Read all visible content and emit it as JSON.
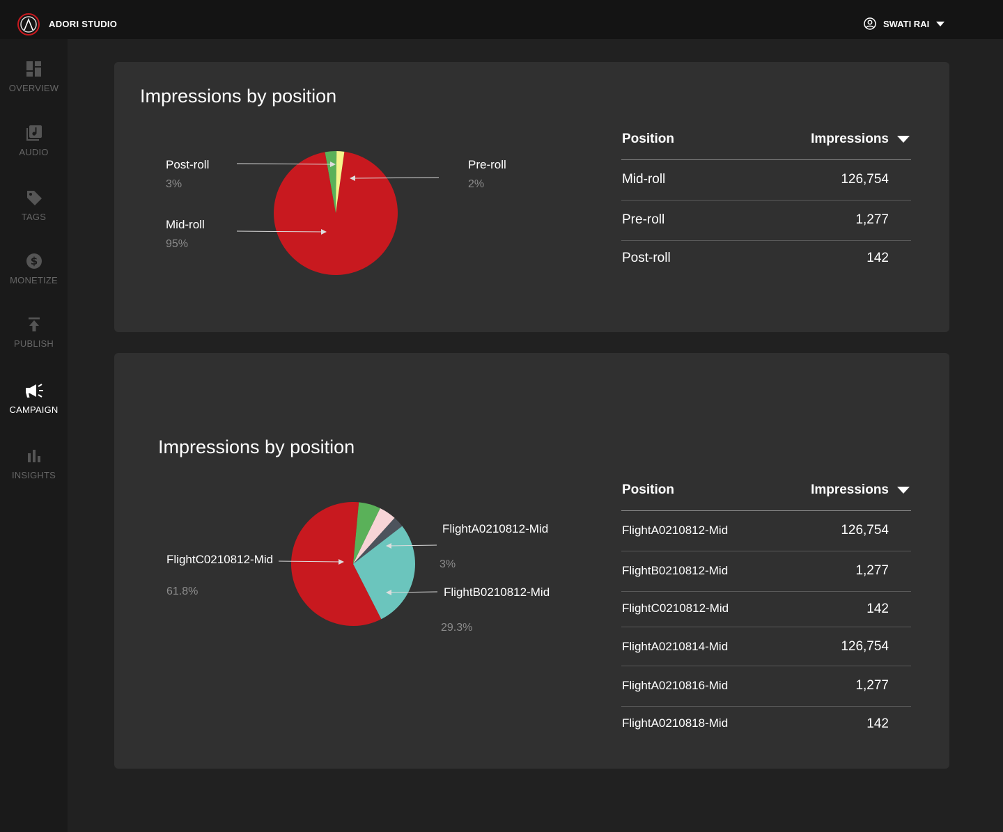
{
  "app": {
    "title": "ADORI STUDIO"
  },
  "user": {
    "name": "SWATI RAI"
  },
  "sidebar": {
    "items": [
      {
        "label": "OVERVIEW",
        "icon": "dashboard-icon"
      },
      {
        "label": "AUDIO",
        "icon": "audio-library-icon"
      },
      {
        "label": "TAGS",
        "icon": "tag-icon"
      },
      {
        "label": "MONETIZE",
        "icon": "dollar-icon"
      },
      {
        "label": "PUBLISH",
        "icon": "upload-icon"
      },
      {
        "label": "CAMPAIGN",
        "icon": "megaphone-icon",
        "active": true
      },
      {
        "label": "INSIGHTS",
        "icon": "bar-chart-icon"
      }
    ]
  },
  "colors": {
    "accent_red": "#c8191f",
    "green": "#5ab159",
    "yellow": "#f5f58c",
    "pink": "#f7d4d6",
    "slate": "#4d535c",
    "teal": "#6bc5bd"
  },
  "panel1": {
    "title": "Impressions by position",
    "labels": [
      {
        "name": "Post-roll",
        "pct": "3%"
      },
      {
        "name": "Mid-roll",
        "pct": "95%"
      },
      {
        "name": "Pre-roll",
        "pct": "2%"
      }
    ],
    "table": {
      "col_position": "Position",
      "col_impressions": "Impressions",
      "rows": [
        {
          "position": "Mid-roll",
          "impressions": "126,754"
        },
        {
          "position": "Pre-roll",
          "impressions": "1,277"
        },
        {
          "position": "Post-roll",
          "impressions": "142"
        }
      ]
    }
  },
  "panel2": {
    "title": "Impressions by position",
    "labels": [
      {
        "name": "FlightC0210812-Mid",
        "pct": "61.8%"
      },
      {
        "name": "FlightA0210812-Mid",
        "pct": "3%"
      },
      {
        "name": "FlightB0210812-Mid",
        "pct": "29.3%"
      }
    ],
    "table": {
      "col_position": "Position",
      "col_impressions": "Impressions",
      "rows": [
        {
          "position": "FlightA0210812-Mid",
          "impressions": "126,754"
        },
        {
          "position": "FlightB0210812-Mid",
          "impressions": "1,277"
        },
        {
          "position": "FlightC0210812-Mid",
          "impressions": "142"
        },
        {
          "position": "FlightA0210814-Mid",
          "impressions": "126,754"
        },
        {
          "position": "FlightA0210816-Mid",
          "impressions": "1,277"
        },
        {
          "position": "FlightA0210818-Mid",
          "impressions": "142"
        }
      ]
    }
  },
  "chart_data": [
    {
      "type": "pie",
      "title": "Impressions by position",
      "slices": [
        {
          "name": "Mid-roll",
          "value": 95,
          "color": "#c8191f"
        },
        {
          "name": "Post-roll",
          "value": 3,
          "color": "#5ab159"
        },
        {
          "name": "Pre-roll",
          "value": 2,
          "color": "#f5f58c"
        }
      ]
    },
    {
      "type": "pie",
      "title": "Impressions by position",
      "slices": [
        {
          "name": "FlightC0210812-Mid",
          "value": 61.8,
          "color": "#c8191f"
        },
        {
          "name": "",
          "value": 6,
          "color": "#5ab159"
        },
        {
          "name": "",
          "value": 4.7,
          "color": "#f7d4d6"
        },
        {
          "name": "FlightA0210812-Mid",
          "value": 3,
          "color": "#4d535c"
        },
        {
          "name": "FlightB0210812-Mid",
          "value": 29.3,
          "color": "#6bc5bd"
        }
      ]
    }
  ]
}
